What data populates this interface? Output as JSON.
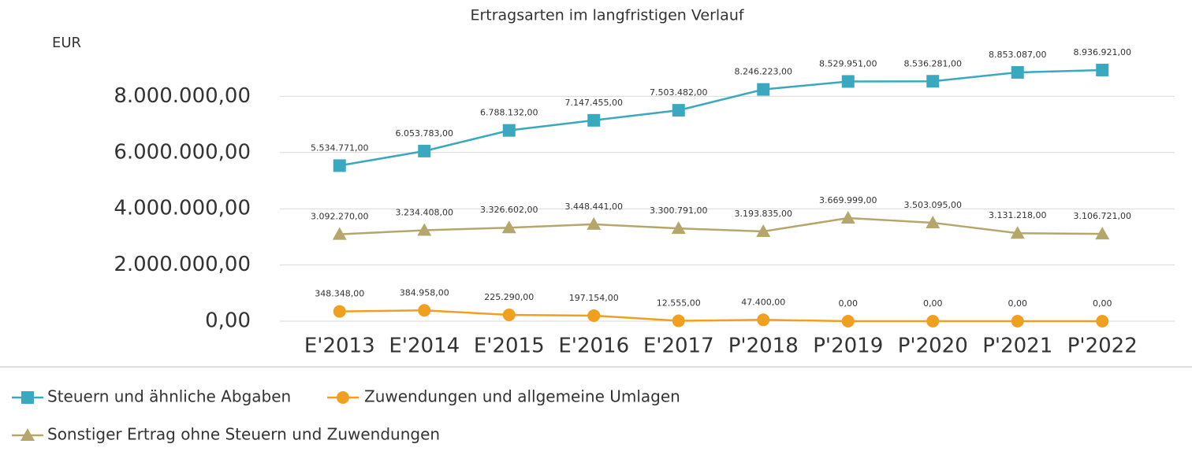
{
  "chart_data": {
    "type": "line",
    "title": "Ertragsarten im langfristigen Verlauf",
    "y_label": "EUR",
    "categories": [
      "E'2013",
      "E'2014",
      "E'2015",
      "E'2016",
      "E'2017",
      "P'2018",
      "P'2019",
      "P'2020",
      "P'2021",
      "P'2022"
    ],
    "series": [
      {
        "name": "Steuern und ähnliche Abgaben",
        "color": "#3aa9c0",
        "marker": "square",
        "values": [
          5534771,
          6053783,
          6788132,
          7147455,
          7503482,
          8246223,
          8529951,
          8536281,
          8853087,
          8936921
        ],
        "value_labels": [
          "5.534.771,00",
          "6.053.783,00",
          "6.788.132,00",
          "7.147.455,00",
          "7.503.482,00",
          "8.246.223,00",
          "8.529.951,00",
          "8.536.281,00",
          "8.853.087,00",
          "8.936.921,00"
        ]
      },
      {
        "name": "Zuwendungen und allgemeine Umlagen",
        "color": "#f0a020",
        "marker": "circle",
        "values": [
          348348,
          384958,
          225290,
          197154,
          12555,
          47400,
          0,
          0,
          0,
          0
        ],
        "value_labels": [
          "348.348,00",
          "384.958,00",
          "225.290,00",
          "197.154,00",
          "12.555,00",
          "47.400,00",
          "0,00",
          "0,00",
          "0,00",
          "0,00"
        ]
      },
      {
        "name": "Sonstiger Ertrag ohne Steuern und Zuwendungen",
        "color": "#b5a76c",
        "marker": "triangle",
        "values": [
          3092270,
          3234408,
          3326602,
          3448441,
          3300791,
          3193835,
          3669999,
          3503095,
          3131218,
          3106721
        ],
        "value_labels": [
          "3.092.270,00",
          "3.234.408,00",
          "3.326.602,00",
          "3.448.441,00",
          "3.300.791,00",
          "3.193.835,00",
          "3.669.999,00",
          "3.503.095,00",
          "3.131.218,00",
          "3.106.721,00"
        ]
      }
    ],
    "ylim": [
      0,
      10000000
    ],
    "yticks": [
      {
        "value": 0,
        "label": "0,00"
      },
      {
        "value": 2000000,
        "label": "2.000.000,00"
      },
      {
        "value": 4000000,
        "label": "4.000.000,00"
      },
      {
        "value": 6000000,
        "label": "6.000.000,00"
      },
      {
        "value": 8000000,
        "label": "8.000.000,00"
      }
    ],
    "grid": true,
    "legend": "bottom"
  }
}
